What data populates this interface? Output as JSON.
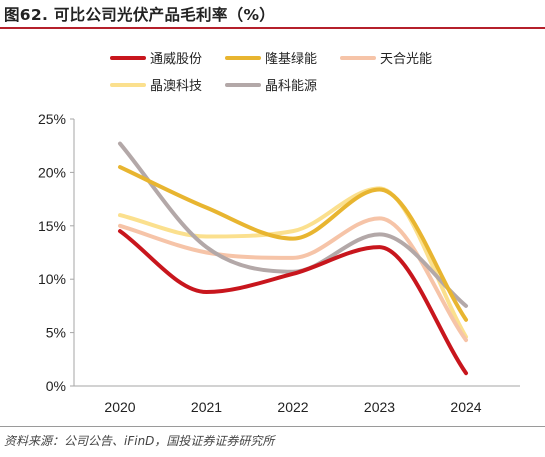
{
  "header": {
    "title": "图62. 可比公司光伏产品毛利率（%）"
  },
  "footer": {
    "source": "资料来源：公司公告、iFinD，国投证券证券研究所"
  },
  "chart_data": {
    "type": "line",
    "title": "图62. 可比公司光伏产品毛利率（%）",
    "xlabel": "",
    "ylabel": "",
    "categories": [
      "2020",
      "2021",
      "2022",
      "2023",
      "2024"
    ],
    "ylim": [
      0,
      25
    ],
    "yticks": [
      0,
      5,
      10,
      15,
      20,
      25
    ],
    "ytick_labels": [
      "0%",
      "5%",
      "10%",
      "15%",
      "20%",
      "25%"
    ],
    "grid": false,
    "smooth": true,
    "legend_position": "top",
    "series": [
      {
        "name": "通威股份",
        "color": "#c8161d",
        "values": [
          14.5,
          8.8,
          10.5,
          13.0,
          1.2
        ]
      },
      {
        "name": "隆基绿能",
        "color": "#e8b530",
        "values": [
          20.5,
          16.7,
          13.8,
          18.4,
          6.2
        ]
      },
      {
        "name": "天合光能",
        "color": "#f6c4a8",
        "values": [
          15.0,
          12.5,
          12.0,
          15.7,
          4.3
        ]
      },
      {
        "name": "晶澳科技",
        "color": "#fbe08e",
        "values": [
          16.0,
          14.0,
          14.5,
          18.5,
          4.6
        ]
      },
      {
        "name": "晶科能源",
        "color": "#b3a8a8",
        "values": [
          22.7,
          13.0,
          10.7,
          14.2,
          7.5
        ]
      }
    ]
  }
}
